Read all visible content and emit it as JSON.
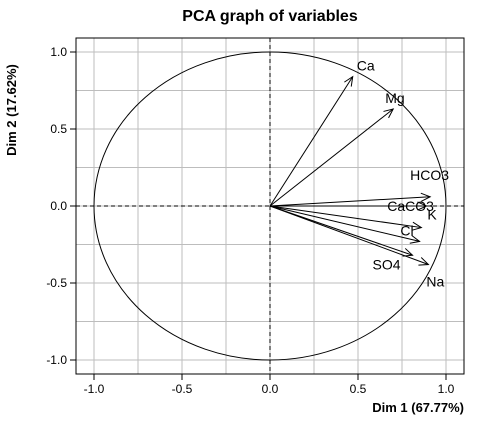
{
  "chart_data": {
    "type": "scatter",
    "title": "PCA graph of variables",
    "xlabel": "Dim 1 (67.77%)",
    "ylabel": "Dim 2 (17.62%)",
    "xlim": [
      -1.0,
      1.0
    ],
    "ylim": [
      -1.0,
      1.0
    ],
    "x_ticks": [
      "-1.0",
      "-0.5",
      "0.0",
      "0.5",
      "1.0"
    ],
    "y_ticks": [
      "-1.0",
      "-0.5",
      "0.0",
      "0.5",
      "1.0"
    ],
    "grid": true,
    "unit_circle": true,
    "variables": [
      {
        "name": "Ca",
        "x": 0.47,
        "y": 0.84
      },
      {
        "name": "Mg",
        "x": 0.7,
        "y": 0.63
      },
      {
        "name": "HCO3",
        "x": 0.91,
        "y": 0.06
      },
      {
        "name": "CaCO3",
        "x": 0.89,
        "y": 0.0
      },
      {
        "name": "K",
        "x": 0.86,
        "y": -0.14
      },
      {
        "name": "Cl",
        "x": 0.85,
        "y": -0.23
      },
      {
        "name": "SO4",
        "x": 0.81,
        "y": -0.32
      },
      {
        "name": "Na",
        "x": 0.9,
        "y": -0.38
      }
    ]
  }
}
